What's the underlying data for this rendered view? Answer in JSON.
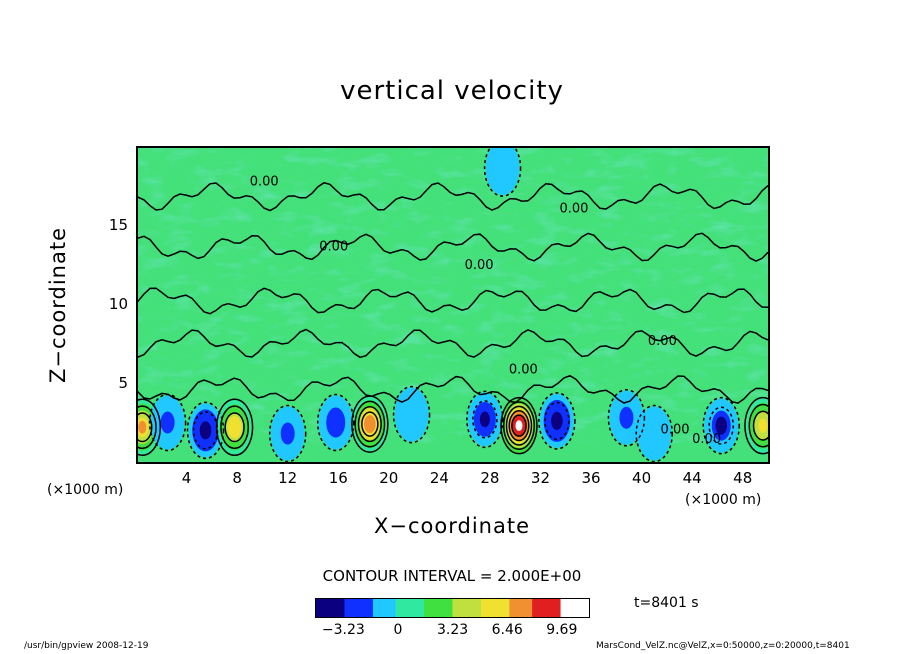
{
  "chart_data": {
    "type": "heatmap",
    "title": "vertical velocity",
    "xlabel": "X−coordinate",
    "ylabel": "Z−coordinate",
    "x_unit": "(×1000 m)",
    "xlim": [
      0,
      50
    ],
    "ylim": [
      0,
      20
    ],
    "x_ticks": [
      "4",
      "8",
      "12",
      "16",
      "20",
      "24",
      "28",
      "32",
      "36",
      "40",
      "44",
      "48"
    ],
    "y_ticks": [
      "5",
      "10",
      "15"
    ],
    "contour_label": "0.00",
    "contour_interval": "CONTOUR INTERVAL = 2.000E+00",
    "colorbar_ticks": [
      "−3.23",
      "0",
      "3.23",
      "6.46",
      "9.69"
    ],
    "colorbar_range": [
      -4.85,
      11.3
    ],
    "colors": {
      "colormap": [
        "#0a0080",
        "#1030ff",
        "#20c8ff",
        "#30e8a0",
        "#40e040",
        "#c0e040",
        "#f0e030",
        "#f09030",
        "#e02020",
        "#ffffff"
      ]
    },
    "cells": [
      {
        "x": 0.5,
        "z": 2.2,
        "w": 7.5
      },
      {
        "x": 2.5,
        "z": 2.5,
        "w": -2.5
      },
      {
        "x": 5.5,
        "z": 2.0,
        "w": -4.8
      },
      {
        "x": 7.8,
        "z": 2.2,
        "w": 7.0
      },
      {
        "x": 12.0,
        "z": 1.8,
        "w": -3.5
      },
      {
        "x": 15.8,
        "z": 2.5,
        "w": -3.8
      },
      {
        "x": 18.5,
        "z": 2.4,
        "w": 8.5
      },
      {
        "x": 21.8,
        "z": 3.0,
        "w": -1.5
      },
      {
        "x": 27.6,
        "z": 2.7,
        "w": -4.9
      },
      {
        "x": 30.3,
        "z": 2.3,
        "w": 11.3
      },
      {
        "x": 33.3,
        "z": 2.6,
        "w": -4.7
      },
      {
        "x": 38.8,
        "z": 2.8,
        "w": -2.5
      },
      {
        "x": 41.0,
        "z": 1.8,
        "w": -1.5
      },
      {
        "x": 46.3,
        "z": 2.3,
        "w": -4.2
      },
      {
        "x": 49.6,
        "z": 2.3,
        "w": 6.5
      },
      {
        "x": 29.0,
        "z": 18.6,
        "w": -1.8
      }
    ]
  },
  "footer": {
    "left": "/usr/bin/gpview   2008-12-19",
    "right": "MarsCond_VelZ.nc@VelZ,x=0:50000,z=0:20000,t=8401",
    "time": "t=8401  s"
  }
}
